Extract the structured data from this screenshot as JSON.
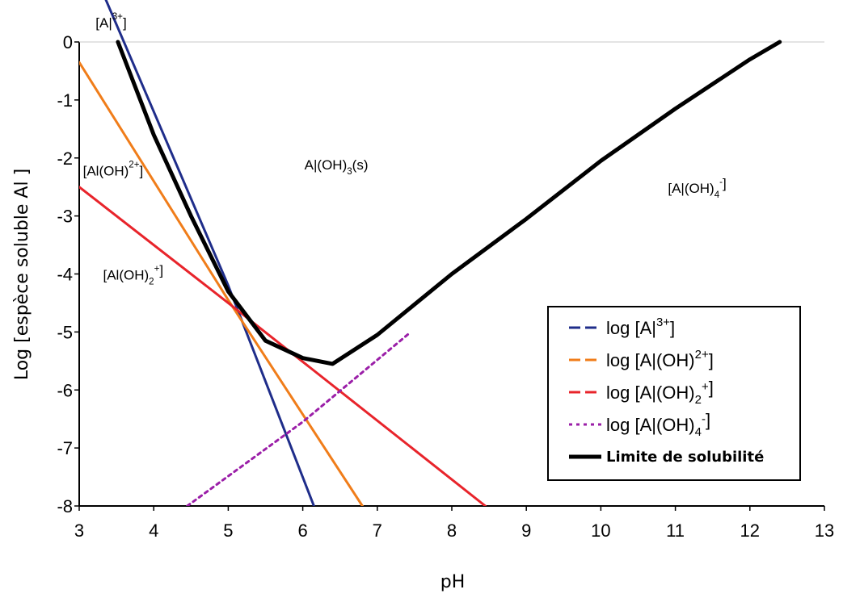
{
  "chart_data": {
    "type": "line",
    "xlabel": "pH",
    "ylabel": "Log [espèce soluble Al ]",
    "xlim": [
      3,
      13
    ],
    "ylim": [
      -8,
      0
    ],
    "xticks": [
      "3",
      "4",
      "5",
      "6",
      "7",
      "8",
      "9",
      "10",
      "11",
      "12",
      "13"
    ],
    "yticks": [
      "0",
      "-1",
      "-2",
      "-3",
      "-4",
      "-5",
      "-6",
      "-7",
      "-8"
    ],
    "grid": false,
    "legend_position": "lower-right",
    "series": [
      {
        "name": "log [A|³⁺]",
        "name_main": "log [A|",
        "name_sup": "3+",
        "name_tail": "]",
        "color": "#1f2d8a",
        "style": "dashed",
        "x": [
          3.0,
          5.0,
          6.15
        ],
        "y": [
          1.8,
          -4.2,
          -8.0
        ]
      },
      {
        "name": "log [A|(OH)²⁺]",
        "name_main": "log [A|(OH)",
        "name_sup": "2+",
        "name_tail": "]",
        "color": "#f07d1a",
        "style": "dashed",
        "x": [
          3.0,
          5.0,
          6.8
        ],
        "y": [
          -0.35,
          -4.45,
          -8.0
        ]
      },
      {
        "name": "log [A|(OH)₂⁺]",
        "name_main": "log [A|(OH)",
        "name_sub": "2",
        "name_sup": "+",
        "name_tail": "]",
        "color": "#e8242b",
        "style": "dashed",
        "x": [
          3.0,
          5.0,
          8.45
        ],
        "y": [
          -2.5,
          -4.5,
          -8.0
        ]
      },
      {
        "name": "log [A|(OH)₄⁻]",
        "name_main": "log [A|(OH)",
        "name_sub": "4",
        "name_sup": "-",
        "name_tail": "]",
        "color": "#9b1fa8",
        "style": "dotted",
        "x": [
          4.45,
          6.0,
          7.45
        ],
        "y": [
          -8.0,
          -6.55,
          -5.0
        ]
      },
      {
        "name": "Limite de solubilité",
        "color": "#000000",
        "style": "solid",
        "x": [
          3.52,
          4.0,
          4.5,
          5.0,
          5.5,
          6.0,
          6.4,
          7.0,
          8.0,
          9.0,
          10.0,
          11.0,
          12.0,
          12.4
        ],
        "y": [
          0.0,
          -1.6,
          -3.0,
          -4.3,
          -5.15,
          -5.45,
          -5.55,
          -5.05,
          -4.0,
          -3.05,
          -2.05,
          -1.15,
          -0.3,
          0.0
        ]
      }
    ],
    "annotations": [
      {
        "id": "al3",
        "main": "[A|",
        "sup": "3+",
        "tail": "]",
        "x": 3.22,
        "y": 0.25
      },
      {
        "id": "aloh",
        "main": "[Al(OH)",
        "sup": "2+",
        "tail": "]",
        "x": 3.05,
        "y": -2.3
      },
      {
        "id": "aloh2",
        "main": "[Al(OH)",
        "sub": "2",
        "sup": "+",
        "tail": "]",
        "x": 3.32,
        "y": -4.1
      },
      {
        "id": "aloh3",
        "main": "A|(OH)",
        "sub": "3",
        "tail": "(s)",
        "x": 6.45,
        "y": -2.2
      },
      {
        "id": "aloh4",
        "main": "[A|(OH)",
        "sub": "4",
        "sup": "-",
        "tail": "]",
        "x": 10.9,
        "y": -2.6
      }
    ]
  }
}
